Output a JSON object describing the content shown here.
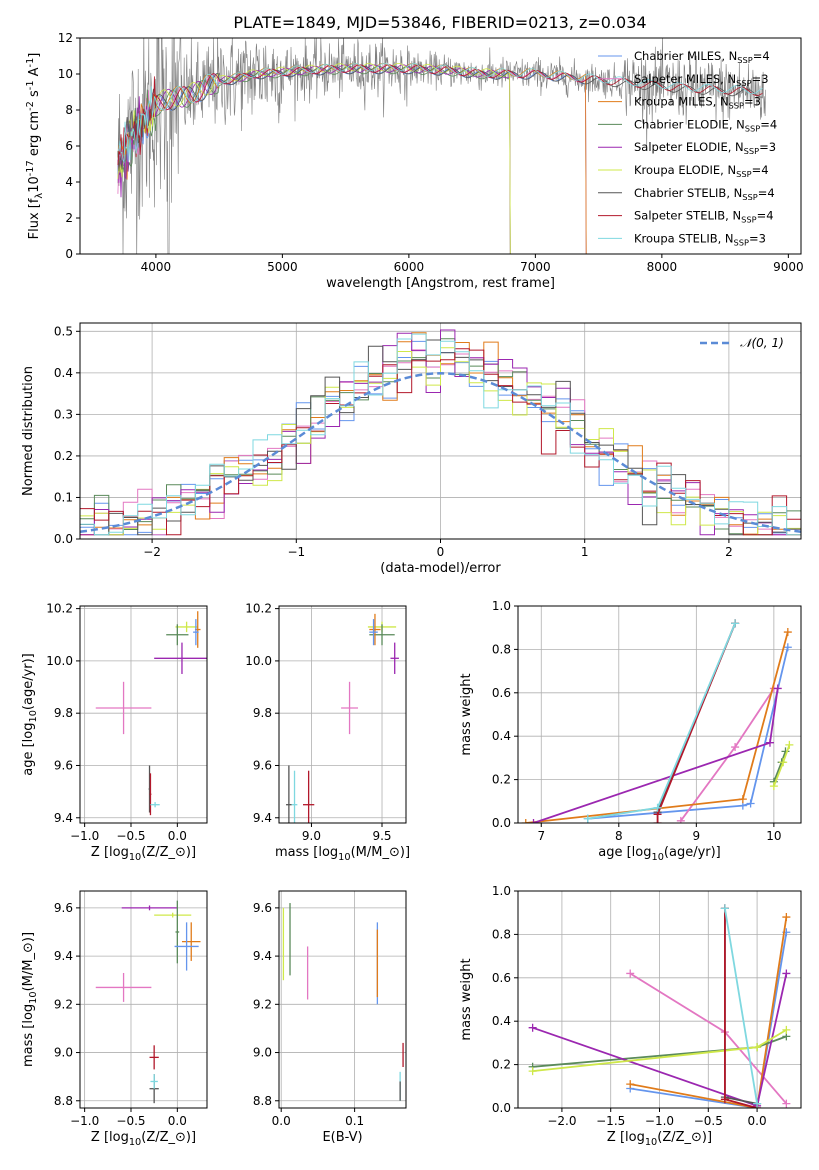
{
  "figure_title": "PLATE=1849, MJD=53846, FIBERID=0213, z=0.034",
  "model_colors": {
    "Chabrier MILES": "#6495ed",
    "Salpeter MILES": "#e377c2",
    "Kroupa MILES": "#e07b1a",
    "Chabrier ELODIE": "#5a8a5a",
    "Salpeter ELODIE": "#9b27b0",
    "Kroupa ELODIE": "#cfe84a",
    "Chabrier STELIB": "#555555",
    "Salpeter STELIB": "#b2182b",
    "Kroupa STELIB": "#7fd8e0",
    "data": "#7f7f7f"
  },
  "chart_data": [
    {
      "id": "spectrum",
      "type": "line",
      "xlabel": "wavelength [Angstrom, rest frame]",
      "ylabel": "Flux [f$_\\lambda$10$^{-17}$ erg cm$^{-2}$ s$^{-1}$ A$^{-1}$]",
      "xlim": [
        3400,
        9100
      ],
      "ylim": [
        0,
        12
      ],
      "xticks": [
        4000,
        5000,
        6000,
        7000,
        8000,
        9000
      ],
      "yticks": [
        0,
        2,
        4,
        6,
        8,
        10,
        12
      ],
      "grid": false,
      "legend": "top-right",
      "legend_entries": [
        {
          "label": "Chabrier MILES, N",
          "sub": "SSP",
          "tail": "=4",
          "model": "Chabrier MILES"
        },
        {
          "label": "Salpeter MILES, N",
          "sub": "SSP",
          "tail": "=3",
          "model": "Salpeter MILES"
        },
        {
          "label": "Kroupa MILES, N",
          "sub": "SSP",
          "tail": "=3",
          "model": "Kroupa MILES"
        },
        {
          "label": "Chabrier ELODIE, N",
          "sub": "SSP",
          "tail": "=4",
          "model": "Chabrier ELODIE"
        },
        {
          "label": "Salpeter ELODIE, N",
          "sub": "SSP",
          "tail": "=3",
          "model": "Salpeter ELODIE"
        },
        {
          "label": "Kroupa ELODIE, N",
          "sub": "SSP",
          "tail": "=4",
          "model": "Kroupa ELODIE"
        },
        {
          "label": "Chabrier STELIB, N",
          "sub": "SSP",
          "tail": "=4",
          "model": "Chabrier STELIB"
        },
        {
          "label": "Salpeter STELIB, N",
          "sub": "SSP",
          "tail": "=4",
          "model": "Salpeter STELIB"
        },
        {
          "label": "Kroupa STELIB, N",
          "sub": "SSP",
          "tail": "=3",
          "model": "Kroupa STELIB"
        }
      ],
      "continuum": {
        "x": [
          3700,
          3750,
          3800,
          3850,
          3900,
          3950,
          4000,
          4100,
          4200,
          4300,
          4400,
          4500,
          4600,
          4800,
          5000,
          5200,
          5500,
          5800,
          6000,
          6300,
          6600,
          7000,
          7300,
          7600,
          7900,
          8200,
          8500,
          8800
        ],
        "y": [
          4.8,
          5.6,
          6.4,
          7.0,
          7.3,
          7.7,
          8.3,
          8.6,
          8.7,
          8.9,
          9.3,
          9.6,
          9.7,
          10.0,
          10.1,
          10.2,
          10.3,
          10.3,
          10.3,
          10.2,
          10.0,
          10.0,
          9.8,
          9.6,
          9.4,
          9.2,
          9.1,
          9.0
        ]
      },
      "model_ranges": [
        {
          "model": "Chabrier MILES",
          "xmax": 7400
        },
        {
          "model": "Salpeter MILES",
          "xmax": 7400
        },
        {
          "model": "Kroupa MILES",
          "xmax": 7400
        },
        {
          "model": "Chabrier ELODIE",
          "xmax": 6800
        },
        {
          "model": "Salpeter ELODIE",
          "xmax": 6800
        },
        {
          "model": "Kroupa ELODIE",
          "xmax": 6800
        },
        {
          "model": "Chabrier STELIB",
          "xmax": 8800
        },
        {
          "model": "Salpeter STELIB",
          "xmax": 8800
        },
        {
          "model": "Kroupa STELIB",
          "xmax": 8800
        }
      ]
    },
    {
      "id": "residuals",
      "type": "line",
      "xlabel": "(data-model)/error",
      "ylabel": "Normed distribution",
      "xlim": [
        -2.5,
        2.5
      ],
      "ylim": [
        0,
        0.52
      ],
      "xticks": [
        -2,
        -1,
        0,
        1,
        2
      ],
      "xticklabels": [
        "−2",
        "−1",
        "0",
        "1",
        "2"
      ],
      "yticks": [
        0.0,
        0.1,
        0.2,
        0.3,
        0.4,
        0.5
      ],
      "yticklabels": [
        "0.0",
        "0.1",
        "0.2",
        "0.3",
        "0.4",
        "0.5"
      ],
      "grid": true,
      "legend": "top-right",
      "legend_label": "𝒩(0, 1)",
      "bin_edges_start": -2.5,
      "bin_width": 0.1,
      "histogram_note": "step histograms, one per model"
    },
    {
      "id": "age_vs_Z",
      "type": "scatter",
      "xlabel": "Z [log$_{10}$($Z/Z_\\odot$)]",
      "ylabel": "age  [log$_{10}$($age/yr$)]",
      "xlim": [
        -1.05,
        0.32
      ],
      "ylim": [
        9.38,
        10.21
      ],
      "xticks": [
        -1.0,
        -0.5,
        0.0
      ],
      "xticklabels": [
        "−1.0",
        "−0.5",
        "0.0"
      ],
      "yticks": [
        9.4,
        9.6,
        9.8,
        10.0,
        10.2
      ],
      "yticklabels": [
        "9.4",
        "9.6",
        "9.8",
        "10.0",
        "10.2"
      ],
      "grid": true,
      "points": [
        {
          "model": "Salpeter MILES",
          "x": -0.58,
          "y": 9.82,
          "xerr": 0.3,
          "yerr": 0.1
        },
        {
          "model": "Salpeter ELODIE",
          "x": 0.05,
          "y": 10.01,
          "xerr": 0.3,
          "yerr": 0.06
        },
        {
          "model": "Kroupa ELODIE",
          "x": 0.1,
          "y": 10.13,
          "xerr": 0.12,
          "yerr": 0.02
        },
        {
          "model": "Chabrier ELODIE",
          "x": 0.0,
          "y": 10.1,
          "xerr": 0.12,
          "yerr": 0.04
        },
        {
          "model": "Kroupa MILES",
          "x": 0.22,
          "y": 10.12,
          "xerr": 0.03,
          "yerr": 0.07
        },
        {
          "model": "Chabrier MILES",
          "x": 0.2,
          "y": 10.11,
          "xerr": 0.03,
          "yerr": 0.05
        },
        {
          "model": "Chabrier STELIB",
          "x": -0.3,
          "y": 9.51,
          "xerr": 0.01,
          "yerr": 0.09
        },
        {
          "model": "Salpeter STELIB",
          "x": -0.29,
          "y": 9.49,
          "xerr": 0.01,
          "yerr": 0.08
        },
        {
          "model": "Kroupa STELIB",
          "x": -0.24,
          "y": 9.45,
          "xerr": 0.05,
          "yerr": 0.01
        }
      ]
    },
    {
      "id": "age_vs_mass",
      "type": "scatter",
      "xlabel": "mass [log$_{10}$($M/M_\\odot$)]",
      "ylabel": "",
      "xlim": [
        8.77,
        9.67
      ],
      "ylim": [
        9.38,
        10.21
      ],
      "xticks": [
        9.0,
        9.5
      ],
      "xticklabels": [
        "9.0",
        "9.5"
      ],
      "yticks": [
        9.4,
        9.6,
        9.8,
        10.0,
        10.2
      ],
      "yticklabels": [
        "9.4",
        "9.6",
        "9.8",
        "10.0",
        "10.2"
      ],
      "grid": true,
      "points": [
        {
          "model": "Salpeter MILES",
          "x": 9.27,
          "y": 9.82,
          "xerr": 0.06,
          "yerr": 0.1
        },
        {
          "model": "Salpeter ELODIE",
          "x": 9.59,
          "y": 10.01,
          "xerr": 0.03,
          "yerr": 0.06
        },
        {
          "model": "Kroupa ELODIE",
          "x": 9.5,
          "y": 10.13,
          "xerr": 0.1,
          "yerr": 0.02
        },
        {
          "model": "Chabrier ELODIE",
          "x": 9.5,
          "y": 10.1,
          "xerr": 0.09,
          "yerr": 0.04
        },
        {
          "model": "Kroupa MILES",
          "x": 9.45,
          "y": 10.12,
          "xerr": 0.04,
          "yerr": 0.06
        },
        {
          "model": "Chabrier MILES",
          "x": 9.44,
          "y": 10.11,
          "xerr": 0.03,
          "yerr": 0.05
        },
        {
          "model": "Salpeter STELIB",
          "x": 8.98,
          "y": 9.45,
          "xerr": 0.04,
          "yerr": 0.13
        },
        {
          "model": "Chabrier STELIB",
          "x": 8.84,
          "y": 9.45,
          "xerr": 0.02,
          "yerr": 0.15
        },
        {
          "model": "Kroupa STELIB",
          "x": 8.88,
          "y": 9.45,
          "xerr": 0.02,
          "yerr": 0.13
        }
      ]
    },
    {
      "id": "massweight_vs_age",
      "type": "line",
      "xlabel": "age  [log$_{10}$($age/yr$)]",
      "ylabel": "mass weight",
      "xlim": [
        6.7,
        10.35
      ],
      "ylim": [
        0,
        1.0
      ],
      "xticks": [
        7,
        8,
        9,
        10
      ],
      "yticks": [
        0.0,
        0.2,
        0.4,
        0.6,
        0.8,
        1.0
      ],
      "yticklabels": [
        "0.0",
        "0.2",
        "0.4",
        "0.6",
        "0.8",
        "1.0"
      ],
      "grid": true,
      "series": [
        {
          "model": "Chabrier MILES",
          "x": [
            7.6,
            9.6,
            9.7,
            10.18
          ],
          "y": [
            0.02,
            0.08,
            0.09,
            0.81
          ]
        },
        {
          "model": "Salpeter MILES",
          "x": [
            8.8,
            9.5,
            10.0
          ],
          "y": [
            0.01,
            0.35,
            0.62
          ]
        },
        {
          "model": "Kroupa MILES",
          "x": [
            6.8,
            9.6,
            10.18
          ],
          "y": [
            0.0,
            0.11,
            0.88
          ]
        },
        {
          "model": "Chabrier ELODIE",
          "x": [
            10.0,
            10.1,
            10.15
          ],
          "y": [
            0.19,
            0.28,
            0.33
          ]
        },
        {
          "model": "Salpeter ELODIE",
          "x": [
            6.9,
            9.95,
            10.05
          ],
          "y": [
            0.0,
            0.37,
            0.62
          ]
        },
        {
          "model": "Kroupa ELODIE",
          "x": [
            10.0,
            10.12,
            10.2
          ],
          "y": [
            0.17,
            0.28,
            0.36
          ]
        },
        {
          "model": "Chabrier STELIB",
          "x": [
            8.5,
            9.5
          ],
          "y": [
            0.05,
            0.92
          ]
        },
        {
          "model": "Salpeter STELIB",
          "x": [
            8.5,
            8.5,
            9.5
          ],
          "y": [
            0.0,
            0.04,
            0.92
          ]
        },
        {
          "model": "Kroupa STELIB",
          "x": [
            7.6,
            8.5,
            9.5
          ],
          "y": [
            0.02,
            0.07,
            0.92
          ]
        }
      ]
    },
    {
      "id": "mass_vs_Z",
      "type": "scatter",
      "xlabel": "Z [log$_{10}$($Z/Z_\\odot$)]",
      "ylabel": "mass [log$_{10}$($M/M_\\odot$)]",
      "xlim": [
        -1.05,
        0.32
      ],
      "ylim": [
        8.77,
        9.67
      ],
      "xticks": [
        -1.0,
        -0.5,
        0.0
      ],
      "xticklabels": [
        "−1.0",
        "−0.5",
        "0.0"
      ],
      "yticks": [
        8.8,
        9.0,
        9.2,
        9.4,
        9.6
      ],
      "yticklabels": [
        "8.8",
        "9.0",
        "9.2",
        "9.4",
        "9.6"
      ],
      "grid": true,
      "points": [
        {
          "model": "Salpeter MILES",
          "x": -0.58,
          "y": 9.27,
          "xerr": 0.3,
          "yerr": 0.06
        },
        {
          "model": "Salpeter ELODIE",
          "x": -0.3,
          "y": 9.6,
          "xerr": 0.3,
          "yerr": 0.01
        },
        {
          "model": "Kroupa ELODIE",
          "x": -0.05,
          "y": 9.57,
          "xerr": 0.2,
          "yerr": 0.01
        },
        {
          "model": "Chabrier ELODIE",
          "x": 0.0,
          "y": 9.5,
          "xerr": 0.02,
          "yerr": 0.13
        },
        {
          "model": "Kroupa MILES",
          "x": 0.15,
          "y": 9.46,
          "xerr": 0.1,
          "yerr": 0.08
        },
        {
          "model": "Chabrier MILES",
          "x": 0.1,
          "y": 9.44,
          "xerr": 0.13,
          "yerr": 0.1
        },
        {
          "model": "Salpeter STELIB",
          "x": -0.25,
          "y": 8.98,
          "xerr": 0.05,
          "yerr": 0.05
        },
        {
          "model": "Chabrier STELIB",
          "x": -0.25,
          "y": 8.85,
          "xerr": 0.05,
          "yerr": 0.06
        },
        {
          "model": "Kroupa STELIB",
          "x": -0.25,
          "y": 8.88,
          "xerr": 0.04,
          "yerr": 0.03
        }
      ]
    },
    {
      "id": "mass_vs_EBV",
      "type": "scatter",
      "xlabel": "E(B-V)",
      "ylabel": "",
      "xlim": [
        -0.003,
        0.17
      ],
      "ylim": [
        8.77,
        9.67
      ],
      "xticks": [
        0.0,
        0.1
      ],
      "xticklabels": [
        "0.0",
        "0.1"
      ],
      "yticks": [
        8.8,
        9.0,
        9.2,
        9.4,
        9.6
      ],
      "yticklabels": [
        "8.8",
        "9.0",
        "9.2",
        "9.4",
        "9.6"
      ],
      "grid": true,
      "points": [
        {
          "model": "Kroupa ELODIE",
          "x": 0.003,
          "y": 9.45,
          "xerr": 0,
          "yerr": 0.15
        },
        {
          "model": "Chabrier ELODIE",
          "x": 0.012,
          "y": 9.47,
          "xerr": 0,
          "yerr": 0.15
        },
        {
          "model": "Salpeter MILES",
          "x": 0.036,
          "y": 9.33,
          "xerr": 0,
          "yerr": 0.11
        },
        {
          "model": "Chabrier MILES",
          "x": 0.131,
          "y": 9.37,
          "xerr": 0,
          "yerr": 0.17
        },
        {
          "model": "Kroupa MILES",
          "x": 0.131,
          "y": 9.37,
          "xerr": 0,
          "yerr": 0.14
        },
        {
          "model": "Salpeter STELIB",
          "x": 0.166,
          "y": 8.99,
          "xerr": 0,
          "yerr": 0.05
        },
        {
          "model": "Kroupa STELIB",
          "x": 0.162,
          "y": 8.86,
          "xerr": 0,
          "yerr": 0.06
        },
        {
          "model": "Chabrier STELIB",
          "x": 0.162,
          "y": 8.84,
          "xerr": 0,
          "yerr": 0.04
        }
      ]
    },
    {
      "id": "massweight_vs_Z",
      "type": "line",
      "xlabel": "Z [log$_{10}$($Z/Z_\\odot$)]",
      "ylabel": "mass weight",
      "xlim": [
        -2.45,
        0.45
      ],
      "ylim": [
        0,
        1.0
      ],
      "xticks": [
        -2.0,
        -1.5,
        -1.0,
        -0.5,
        0.0
      ],
      "xticklabels": [
        "−2.0",
        "−1.5",
        "−1.0",
        "−0.5",
        "0.0"
      ],
      "yticks": [
        0.0,
        0.2,
        0.4,
        0.6,
        0.8,
        1.0
      ],
      "yticklabels": [
        "0.0",
        "0.2",
        "0.4",
        "0.6",
        "0.8",
        "1.0"
      ],
      "grid": true,
      "series": [
        {
          "model": "Chabrier MILES",
          "x": [
            -1.3,
            0.0,
            0.3
          ],
          "y": [
            0.09,
            0.0,
            0.81
          ]
        },
        {
          "model": "Salpeter MILES",
          "x": [
            -1.3,
            -0.33,
            0.3
          ],
          "y": [
            0.62,
            0.35,
            0.02
          ]
        },
        {
          "model": "Kroupa MILES",
          "x": [
            -1.3,
            0.0,
            0.3
          ],
          "y": [
            0.11,
            0.0,
            0.88
          ]
        },
        {
          "model": "Chabrier ELODIE",
          "x": [
            -2.3,
            0.0,
            0.3
          ],
          "y": [
            0.19,
            0.28,
            0.33
          ]
        },
        {
          "model": "Salpeter ELODIE",
          "x": [
            -2.3,
            0.0,
            0.3
          ],
          "y": [
            0.37,
            0.01,
            0.62
          ]
        },
        {
          "model": "Kroupa ELODIE",
          "x": [
            -2.3,
            0.0,
            0.3
          ],
          "y": [
            0.17,
            0.28,
            0.36
          ]
        },
        {
          "model": "Chabrier STELIB",
          "x": [
            -0.33,
            -0.33,
            0.0
          ],
          "y": [
            0.92,
            0.05,
            0.02
          ]
        },
        {
          "model": "Salpeter STELIB",
          "x": [
            -0.33,
            -0.33,
            0.0
          ],
          "y": [
            0.92,
            0.04,
            0.0
          ]
        },
        {
          "model": "Kroupa STELIB",
          "x": [
            -0.33,
            0.0
          ],
          "y": [
            0.92,
            0.02
          ]
        }
      ]
    }
  ]
}
